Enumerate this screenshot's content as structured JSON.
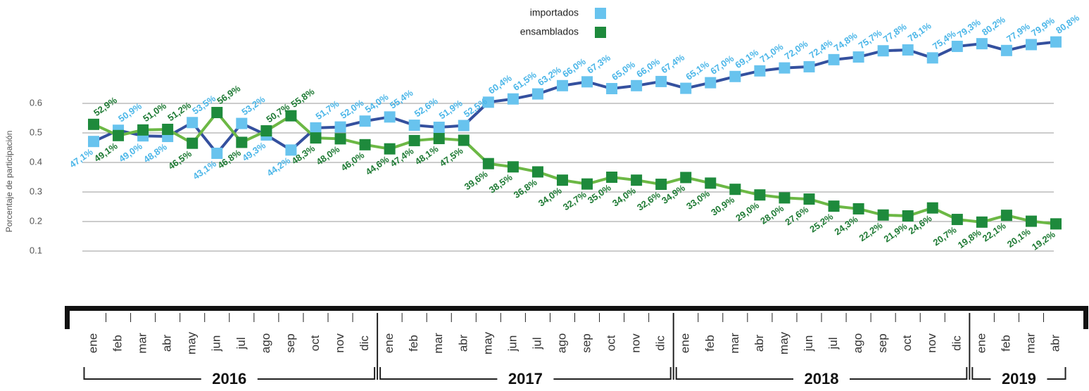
{
  "chart_data": {
    "type": "line",
    "y_label": "Porcentaje de participación",
    "categories": [
      "ene",
      "feb",
      "mar",
      "abr",
      "may",
      "jun",
      "jul",
      "ago",
      "sep",
      "oct",
      "nov",
      "dic",
      "ene",
      "feb",
      "mar",
      "abr",
      "may",
      "jun",
      "jul",
      "ago",
      "sep",
      "oct",
      "nov",
      "dic",
      "ene",
      "feb",
      "mar",
      "abr",
      "may",
      "jun",
      "jul",
      "ago",
      "sep",
      "oct",
      "nov",
      "dic",
      "ene",
      "feb",
      "mar",
      "abr"
    ],
    "years": [
      "2016",
      "2017",
      "2018",
      "2019"
    ],
    "ylim": [
      0.1,
      0.85
    ],
    "yticks": [
      0.1,
      0.2,
      0.3,
      0.4,
      0.5,
      0.6
    ],
    "grid": true,
    "series": [
      {
        "name": "importados",
        "color": "#68c3ee",
        "line_color": "#34509e",
        "label_color": "#4bb6e8",
        "values": [
          0.471,
          0.509,
          0.49,
          0.488,
          0.535,
          0.431,
          0.532,
          0.493,
          0.442,
          0.517,
          0.52,
          0.54,
          0.554,
          0.526,
          0.519,
          0.525,
          0.604,
          0.615,
          0.632,
          0.66,
          0.673,
          0.65,
          0.66,
          0.674,
          0.651,
          0.67,
          0.691,
          0.71,
          0.72,
          0.724,
          0.748,
          0.757,
          0.778,
          0.781,
          0.754,
          0.793,
          0.802,
          0.779,
          0.799,
          0.808
        ],
        "value_labels": [
          "47,1%",
          "50,9%",
          "49,0%",
          "48,8%",
          "53,5%",
          "43,1%",
          "53,2%",
          "49,3%",
          "44,2%",
          "51,7%",
          "52,0%",
          "54,0%",
          "55,4%",
          "52,6%",
          "51,9%",
          "52,5%",
          "60,4%",
          "61,5%",
          "63,2%",
          "66,0%",
          "67,3%",
          "65,0%",
          "66,0%",
          "67,4%",
          "65,1%",
          "67,0%",
          "69,1%",
          "71,0%",
          "72,0%",
          "72,4%",
          "74,8%",
          "75,7%",
          "77,8%",
          "78,1%",
          "75,4%",
          "79,3%",
          "80,2%",
          "77,9%",
          "79,9%",
          "80,8%"
        ]
      },
      {
        "name": "ensamblados",
        "color": "#1e8a3c",
        "line_color": "#6cb845",
        "label_color": "#1e7a34",
        "values": [
          0.529,
          0.491,
          0.51,
          0.512,
          0.465,
          0.569,
          0.468,
          0.507,
          0.558,
          0.483,
          0.48,
          0.46,
          0.446,
          0.474,
          0.481,
          0.475,
          0.396,
          0.385,
          0.368,
          0.34,
          0.327,
          0.35,
          0.34,
          0.326,
          0.349,
          0.33,
          0.309,
          0.29,
          0.28,
          0.276,
          0.252,
          0.243,
          0.222,
          0.219,
          0.246,
          0.207,
          0.198,
          0.221,
          0.201,
          0.192
        ],
        "value_labels": [
          "52,9%",
          "49,1%",
          "51,0%",
          "51,2%",
          "46,5%",
          "56,9%",
          "46,8%",
          "50,7%",
          "55,8%",
          "48,3%",
          "48,0%",
          "46,0%",
          "44,6%",
          "47,4%",
          "48,1%",
          "47,5%",
          "39,6%",
          "38,5%",
          "36,8%",
          "34,0%",
          "32,7%",
          "35,0%",
          "34,0%",
          "32,6%",
          "34,9%",
          "33,0%",
          "30,9%",
          "29,0%",
          "28,0%",
          "27,6%",
          "25,2%",
          "24,3%",
          "22,2%",
          "21,9%",
          "24,6%",
          "20,7%",
          "19,8%",
          "22,1%",
          "20,1%",
          "19,2%"
        ]
      }
    ]
  }
}
